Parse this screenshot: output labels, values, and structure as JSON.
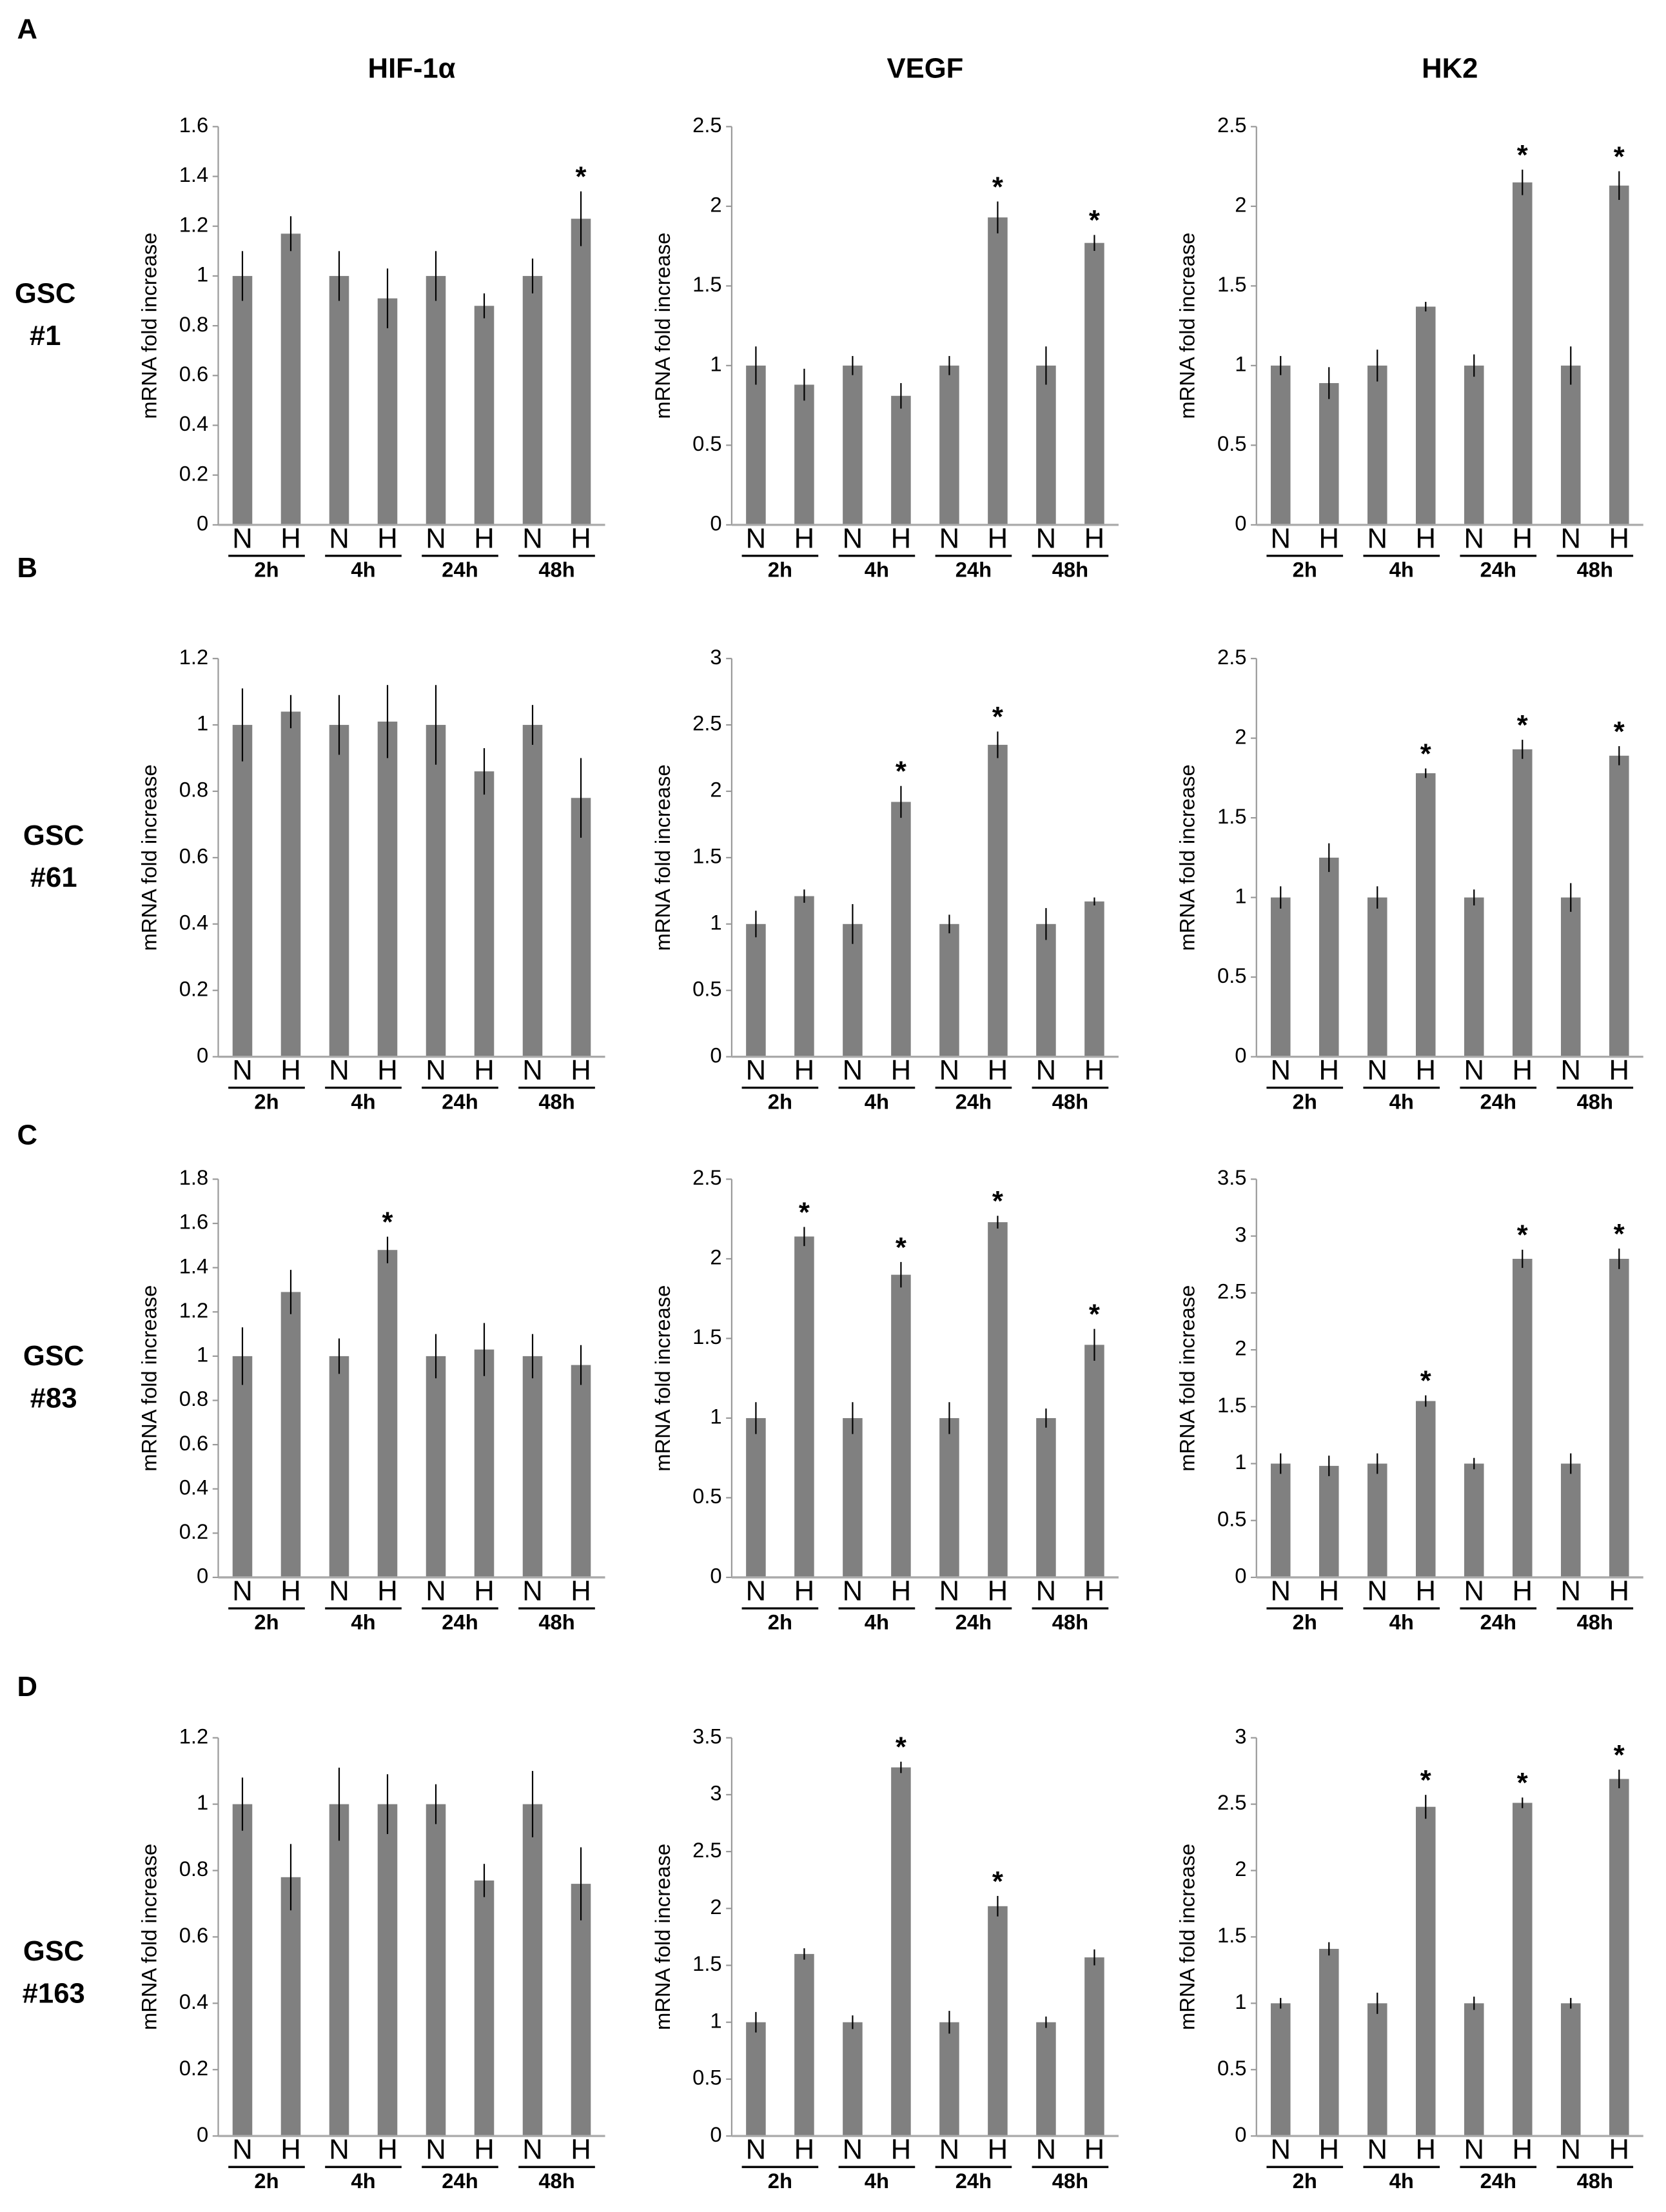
{
  "panel_labels": [
    "A",
    "B",
    "C",
    "D"
  ],
  "row_labels": [
    [
      "GSC",
      "#1"
    ],
    [
      "GSC",
      "#61"
    ],
    [
      "GSC",
      "#83"
    ],
    [
      "GSC",
      "#163"
    ]
  ],
  "chart_data": [
    {
      "type": "bar",
      "title": "HIF-1α",
      "ylabel": "mRNA fold increase",
      "categories": [
        "N",
        "H",
        "N",
        "H",
        "N",
        "H",
        "N",
        "H"
      ],
      "groups": [
        "2h",
        "4h",
        "24h",
        "48h"
      ],
      "values": [
        1.0,
        1.17,
        1.0,
        0.91,
        1.0,
        0.88,
        1.0,
        1.23
      ],
      "errors": [
        0.1,
        0.07,
        0.1,
        0.12,
        0.1,
        0.05,
        0.07,
        0.11
      ],
      "significance": [
        null,
        null,
        null,
        null,
        null,
        null,
        null,
        "*"
      ],
      "color": "#808080",
      "ylim": [
        0,
        1.6
      ],
      "yticks": [
        0,
        0.2,
        0.4,
        0.6,
        0.8,
        1,
        1.2,
        1.4,
        1.6
      ]
    },
    {
      "type": "bar",
      "title": "VEGF",
      "ylabel": "mRNA fold increase",
      "categories": [
        "N",
        "H",
        "N",
        "H",
        "N",
        "H",
        "N",
        "H"
      ],
      "groups": [
        "2h",
        "4h",
        "24h",
        "48h"
      ],
      "values": [
        1.0,
        0.88,
        1.0,
        0.81,
        1.0,
        1.93,
        1.0,
        1.77
      ],
      "errors": [
        0.12,
        0.1,
        0.06,
        0.08,
        0.06,
        0.1,
        0.12,
        0.05
      ],
      "significance": [
        null,
        null,
        null,
        null,
        null,
        "*",
        null,
        "*"
      ],
      "color": "#808080",
      "ylim": [
        0,
        2.5
      ],
      "yticks": [
        0,
        0.5,
        1,
        1.5,
        2,
        2.5
      ]
    },
    {
      "type": "bar",
      "title": "HK2",
      "ylabel": "mRNA fold increase",
      "categories": [
        "N",
        "H",
        "N",
        "H",
        "N",
        "H",
        "N",
        "H"
      ],
      "groups": [
        "2h",
        "4h",
        "24h",
        "48h"
      ],
      "values": [
        1.0,
        0.89,
        1.0,
        1.37,
        1.0,
        2.15,
        1.0,
        2.13
      ],
      "errors": [
        0.06,
        0.1,
        0.1,
        0.03,
        0.07,
        0.08,
        0.12,
        0.09
      ],
      "significance": [
        null,
        null,
        null,
        null,
        null,
        "*",
        null,
        "*"
      ],
      "color": "#808080",
      "ylim": [
        0,
        2.5
      ],
      "yticks": [
        0,
        0.5,
        1,
        1.5,
        2,
        2.5
      ]
    },
    {
      "type": "bar",
      "ylabel": "mRNA fold increase",
      "categories": [
        "N",
        "H",
        "N",
        "H",
        "N",
        "H",
        "N",
        "H"
      ],
      "groups": [
        "2h",
        "4h",
        "24h",
        "48h"
      ],
      "values": [
        1.0,
        1.04,
        1.0,
        1.01,
        1.0,
        0.86,
        1.0,
        0.78
      ],
      "errors": [
        0.11,
        0.05,
        0.09,
        0.11,
        0.12,
        0.07,
        0.06,
        0.12
      ],
      "significance": [
        null,
        null,
        null,
        null,
        null,
        null,
        null,
        null
      ],
      "color": "#808080",
      "ylim": [
        0,
        1.2
      ],
      "yticks": [
        0,
        0.2,
        0.4,
        0.6,
        0.8,
        1,
        1.2
      ]
    },
    {
      "type": "bar",
      "ylabel": "mRNA fold increase",
      "categories": [
        "N",
        "H",
        "N",
        "H",
        "N",
        "H",
        "N",
        "H"
      ],
      "groups": [
        "2h",
        "4h",
        "24h",
        "48h"
      ],
      "values": [
        1.0,
        1.21,
        1.0,
        1.92,
        1.0,
        2.35,
        1.0,
        1.17
      ],
      "errors": [
        0.1,
        0.05,
        0.15,
        0.12,
        0.07,
        0.1,
        0.12,
        0.03
      ],
      "significance": [
        null,
        null,
        null,
        "*",
        null,
        "*",
        null,
        null
      ],
      "color": "#808080",
      "ylim": [
        0,
        3
      ],
      "yticks": [
        0,
        0.5,
        1,
        1.5,
        2,
        2.5,
        3
      ]
    },
    {
      "type": "bar",
      "ylabel": "mRNA fold increase",
      "categories": [
        "N",
        "H",
        "N",
        "H",
        "N",
        "H",
        "N",
        "H"
      ],
      "groups": [
        "2h",
        "4h",
        "24h",
        "48h"
      ],
      "values": [
        1.0,
        1.25,
        1.0,
        1.78,
        1.0,
        1.93,
        1.0,
        1.89
      ],
      "errors": [
        0.07,
        0.09,
        0.07,
        0.03,
        0.05,
        0.06,
        0.09,
        0.06
      ],
      "significance": [
        null,
        null,
        null,
        "*",
        null,
        "*",
        null,
        "*"
      ],
      "color": "#808080",
      "ylim": [
        0,
        2.5
      ],
      "yticks": [
        0,
        0.5,
        1,
        1.5,
        2,
        2.5
      ]
    },
    {
      "type": "bar",
      "ylabel": "mRNA fold increase",
      "categories": [
        "N",
        "H",
        "N",
        "H",
        "N",
        "H",
        "N",
        "H"
      ],
      "groups": [
        "2h",
        "4h",
        "24h",
        "48h"
      ],
      "values": [
        1.0,
        1.29,
        1.0,
        1.48,
        1.0,
        1.03,
        1.0,
        0.96
      ],
      "errors": [
        0.13,
        0.1,
        0.08,
        0.06,
        0.1,
        0.12,
        0.1,
        0.09
      ],
      "significance": [
        null,
        null,
        null,
        "*",
        null,
        null,
        null,
        null
      ],
      "color": "#808080",
      "ylim": [
        0,
        1.8
      ],
      "yticks": [
        0,
        0.2,
        0.4,
        0.6,
        0.8,
        1,
        1.2,
        1.4,
        1.6,
        1.8
      ]
    },
    {
      "type": "bar",
      "ylabel": "mRNA fold increase",
      "categories": [
        "N",
        "H",
        "N",
        "H",
        "N",
        "H",
        "N",
        "H"
      ],
      "groups": [
        "2h",
        "4h",
        "24h",
        "48h"
      ],
      "values": [
        1.0,
        2.14,
        1.0,
        1.9,
        1.0,
        2.23,
        1.0,
        1.46
      ],
      "errors": [
        0.1,
        0.06,
        0.1,
        0.08,
        0.1,
        0.04,
        0.06,
        0.1
      ],
      "significance": [
        null,
        "*",
        null,
        "*",
        null,
        "*",
        null,
        "*"
      ],
      "color": "#808080",
      "ylim": [
        0,
        2.5
      ],
      "yticks": [
        0,
        0.5,
        1,
        1.5,
        2,
        2.5
      ]
    },
    {
      "type": "bar",
      "ylabel": "mRNA fold increase",
      "categories": [
        "N",
        "H",
        "N",
        "H",
        "N",
        "H",
        "N",
        "H"
      ],
      "groups": [
        "2h",
        "4h",
        "24h",
        "48h"
      ],
      "values": [
        1.0,
        0.98,
        1.0,
        1.55,
        1.0,
        2.8,
        1.0,
        2.8
      ],
      "errors": [
        0.09,
        0.09,
        0.09,
        0.05,
        0.05,
        0.08,
        0.09,
        0.09
      ],
      "significance": [
        null,
        null,
        null,
        "*",
        null,
        "*",
        null,
        "*"
      ],
      "color": "#808080",
      "ylim": [
        0,
        3.5
      ],
      "yticks": [
        0,
        0.5,
        1,
        1.5,
        2,
        2.5,
        3,
        3.5
      ]
    },
    {
      "type": "bar",
      "ylabel": "mRNA fold increase",
      "categories": [
        "N",
        "H",
        "N",
        "H",
        "N",
        "H",
        "N",
        "H"
      ],
      "groups": [
        "2h",
        "4h",
        "24h",
        "48h"
      ],
      "values": [
        1.0,
        0.78,
        1.0,
        1.0,
        1.0,
        0.77,
        1.0,
        0.76
      ],
      "errors": [
        0.08,
        0.1,
        0.11,
        0.09,
        0.06,
        0.05,
        0.1,
        0.11
      ],
      "significance": [
        null,
        null,
        null,
        null,
        null,
        null,
        null,
        null
      ],
      "color": "#808080",
      "ylim": [
        0,
        1.2
      ],
      "yticks": [
        0,
        0.2,
        0.4,
        0.6,
        0.8,
        1,
        1.2
      ]
    },
    {
      "type": "bar",
      "ylabel": "mRNA fold increase",
      "categories": [
        "N",
        "H",
        "N",
        "H",
        "N",
        "H",
        "N",
        "H"
      ],
      "groups": [
        "2h",
        "4h",
        "24h",
        "48h"
      ],
      "values": [
        1.0,
        1.6,
        1.0,
        3.24,
        1.0,
        2.02,
        1.0,
        1.57
      ],
      "errors": [
        0.09,
        0.05,
        0.06,
        0.05,
        0.1,
        0.09,
        0.05,
        0.07
      ],
      "significance": [
        null,
        null,
        null,
        "*",
        null,
        "*",
        null,
        null
      ],
      "color": "#808080",
      "ylim": [
        0,
        3.5
      ],
      "yticks": [
        0,
        0.5,
        1,
        1.5,
        2,
        2.5,
        3,
        3.5
      ]
    },
    {
      "type": "bar",
      "ylabel": "mRNA fold increase",
      "categories": [
        "N",
        "H",
        "N",
        "H",
        "N",
        "H",
        "N",
        "H"
      ],
      "groups": [
        "2h",
        "4h",
        "24h",
        "48h"
      ],
      "values": [
        1.0,
        1.41,
        1.0,
        2.48,
        1.0,
        2.51,
        1.0,
        2.69
      ],
      "errors": [
        0.04,
        0.05,
        0.08,
        0.09,
        0.05,
        0.04,
        0.04,
        0.07
      ],
      "significance": [
        null,
        null,
        null,
        "*",
        null,
        "*",
        null,
        "*"
      ],
      "color": "#808080",
      "ylim": [
        0,
        3
      ],
      "yticks": [
        0,
        0.5,
        1,
        1.5,
        2,
        2.5,
        3
      ]
    }
  ]
}
